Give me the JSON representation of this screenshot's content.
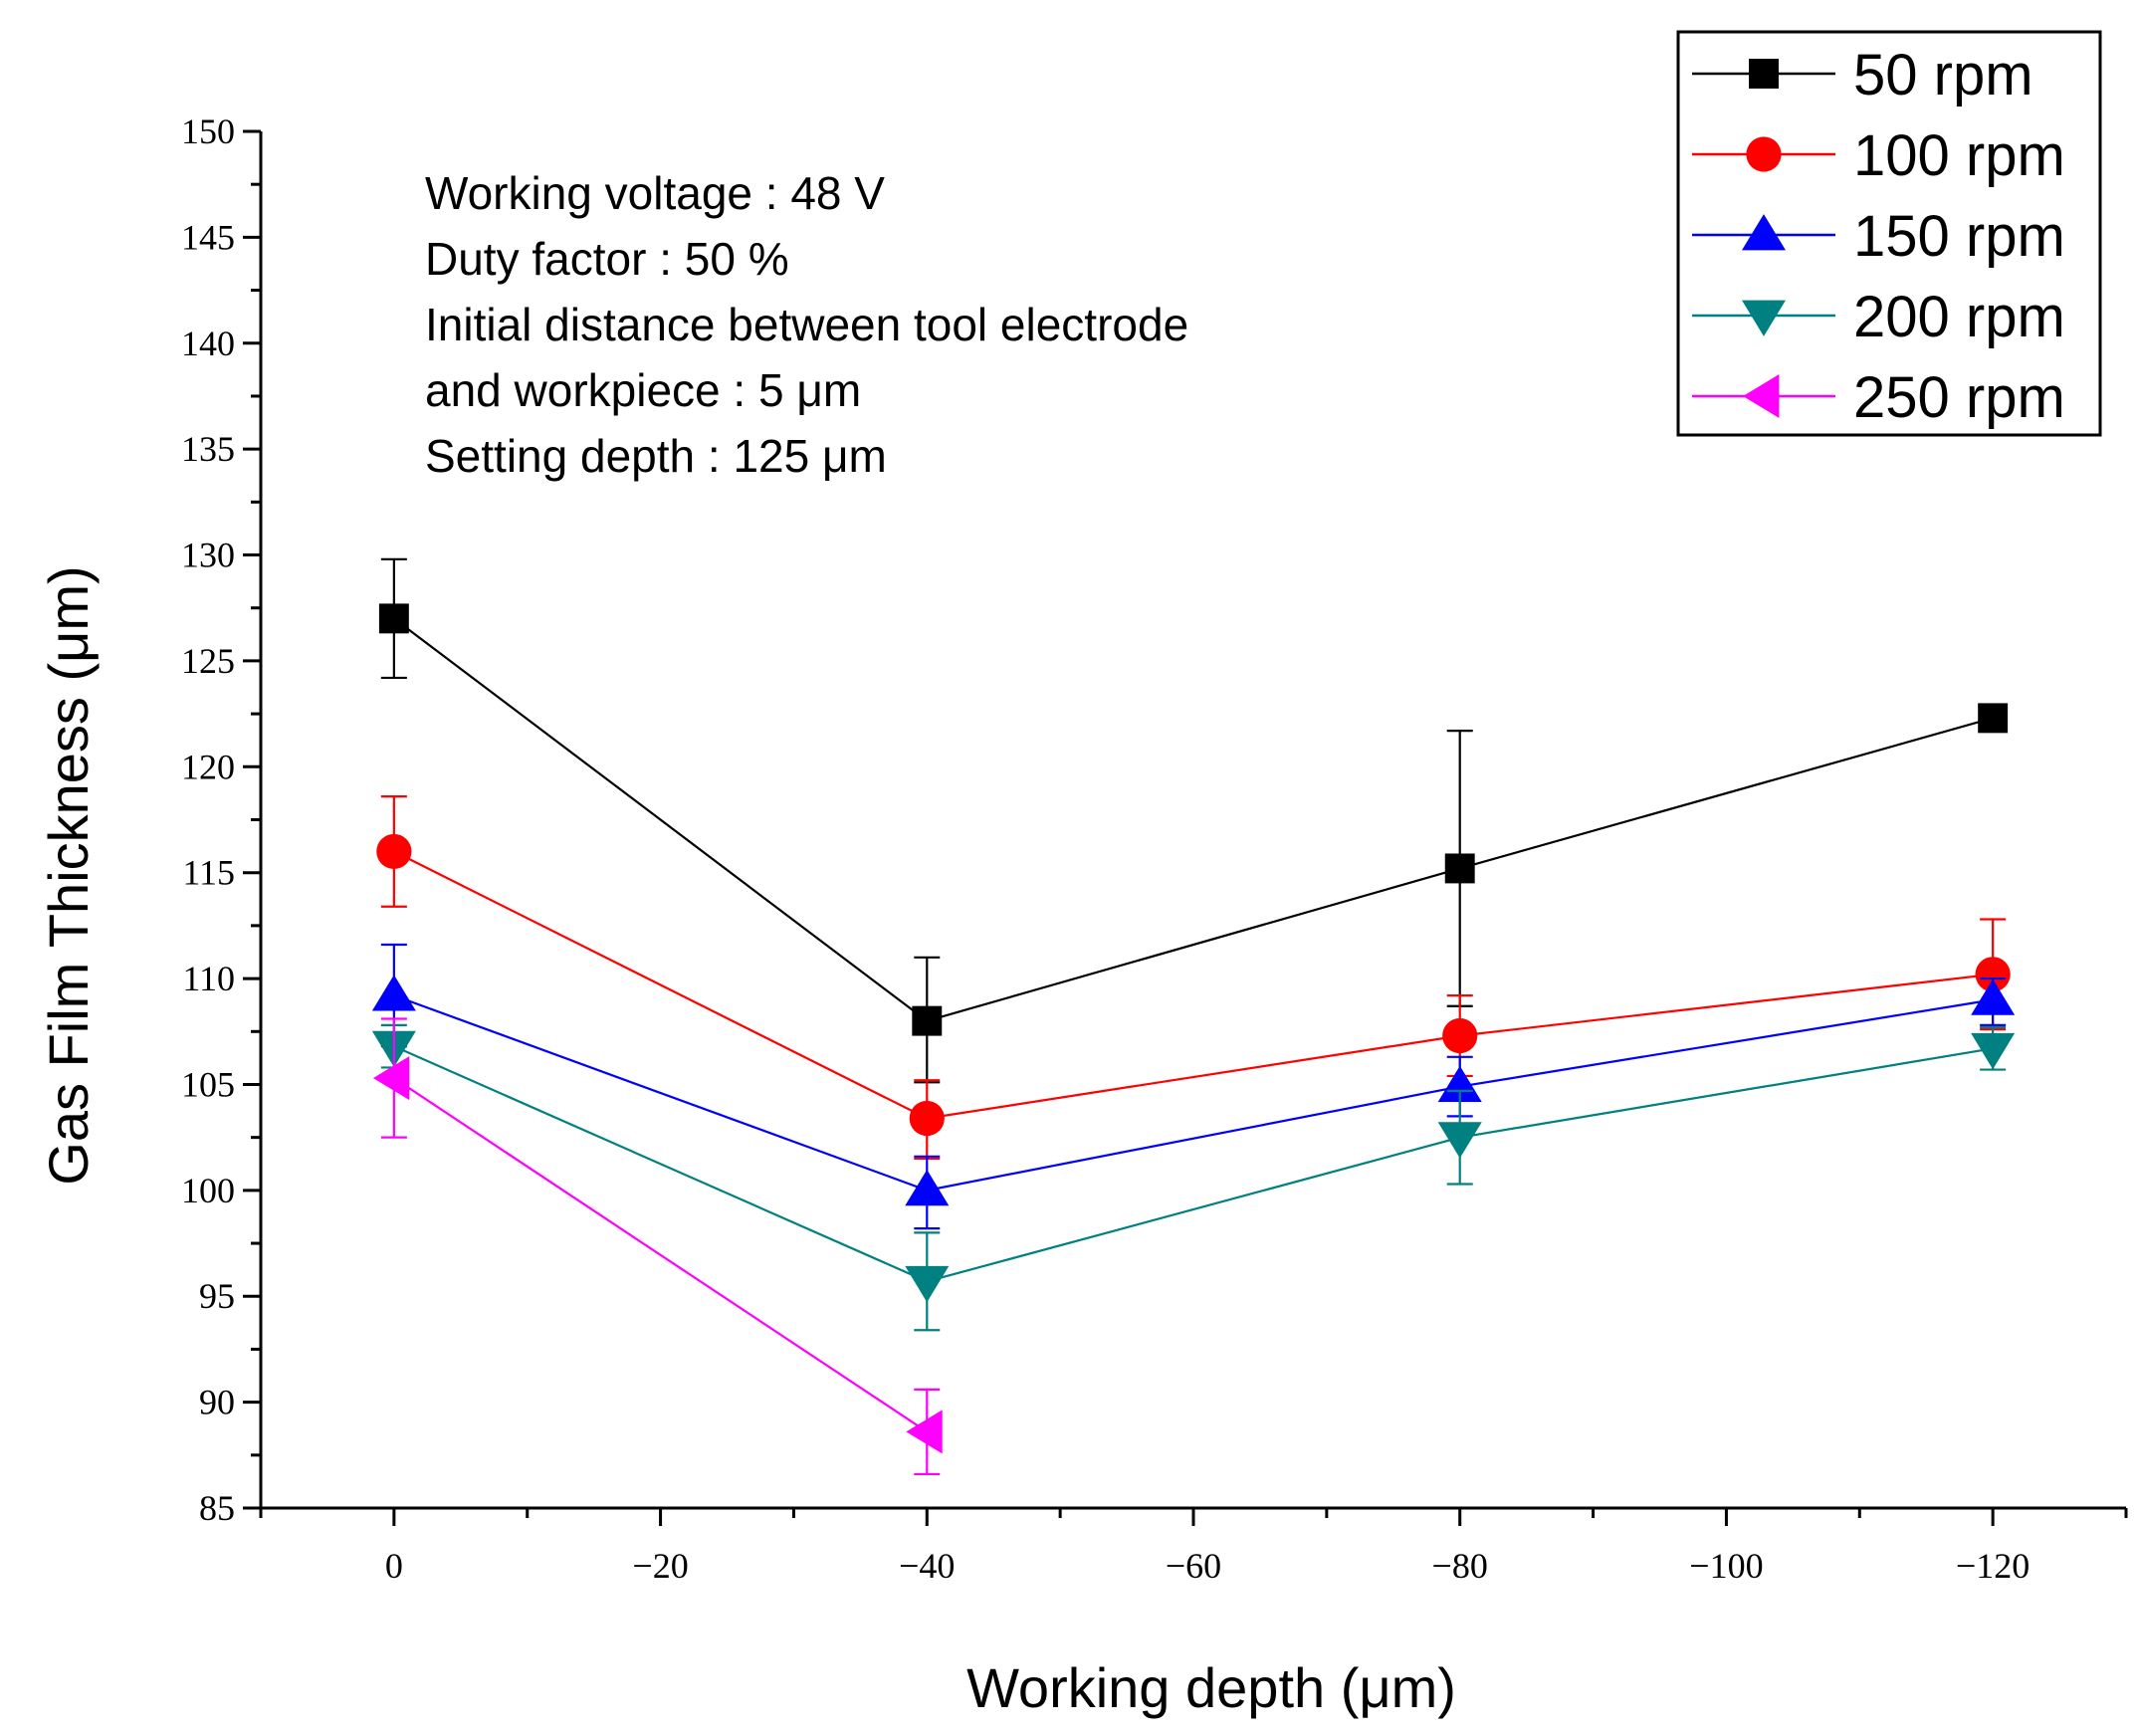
{
  "chart_data": {
    "type": "line",
    "title": "",
    "xlabel": "Working depth (μm)",
    "ylabel": "Gas Film Thickness (μm)",
    "x": [
      0,
      -40,
      -80,
      -120
    ],
    "xlim": [
      10,
      -130
    ],
    "ylim": [
      85,
      150
    ],
    "xticks": [
      0,
      -20,
      -40,
      -60,
      -80,
      -100,
      -120
    ],
    "xtick_labels": [
      "0",
      "−20",
      "−40",
      "−60",
      "−80",
      "−100",
      "−120"
    ],
    "yticks": [
      85,
      90,
      95,
      100,
      105,
      110,
      115,
      120,
      125,
      130,
      135,
      140,
      145,
      150
    ],
    "ytick_labels": [
      "85",
      "90",
      "95",
      "100",
      "105",
      "110",
      "115",
      "120",
      "125",
      "130",
      "135",
      "140",
      "145",
      "150"
    ],
    "legend_position": "top-right",
    "annotations": [
      "Working voltage : 48 V",
      "Duty factor : 50 %",
      "Initial distance between tool electrode",
      "and workpiece : 5 μm",
      "Setting depth : 125 μm"
    ],
    "series": [
      {
        "name": "50 rpm",
        "color": "#000000",
        "marker": "square",
        "x": [
          0,
          -40,
          -80,
          -120
        ],
        "values": [
          127.0,
          108.0,
          115.2,
          122.3
        ],
        "err_low": [
          2.8,
          2.9,
          6.5,
          0.5
        ],
        "err_high": [
          2.8,
          3.0,
          6.5,
          0.3
        ]
      },
      {
        "name": "100 rpm",
        "color": "#ff0000",
        "marker": "circle",
        "x": [
          0,
          -40,
          -80,
          -120
        ],
        "values": [
          116.0,
          103.4,
          107.3,
          110.2
        ],
        "err_low": [
          2.6,
          1.9,
          1.9,
          2.6
        ],
        "err_high": [
          2.6,
          1.8,
          1.9,
          2.6
        ]
      },
      {
        "name": "150 rpm",
        "color": "#0000ff",
        "marker": "triangle-up",
        "x": [
          0,
          -40,
          -80,
          -120
        ],
        "values": [
          109.2,
          100.0,
          104.9,
          109.0
        ],
        "err_low": [
          2.4,
          1.8,
          1.4,
          1.2
        ],
        "err_high": [
          2.4,
          1.6,
          1.4,
          1.0
        ]
      },
      {
        "name": "200 rpm",
        "color": "#008080",
        "marker": "triangle-down",
        "x": [
          0,
          -40,
          -80,
          -120
        ],
        "values": [
          106.8,
          95.7,
          102.5,
          106.7
        ],
        "err_low": [
          1.0,
          2.3,
          2.2,
          1.0
        ],
        "err_high": [
          1.0,
          2.3,
          2.2,
          1.0
        ]
      },
      {
        "name": "250 rpm",
        "color": "#ff00ff",
        "marker": "triangle-left",
        "x": [
          0,
          -40
        ],
        "values": [
          105.3,
          88.6
        ],
        "err_low": [
          2.8,
          2.0
        ],
        "err_high": [
          2.8,
          2.0
        ]
      }
    ]
  }
}
